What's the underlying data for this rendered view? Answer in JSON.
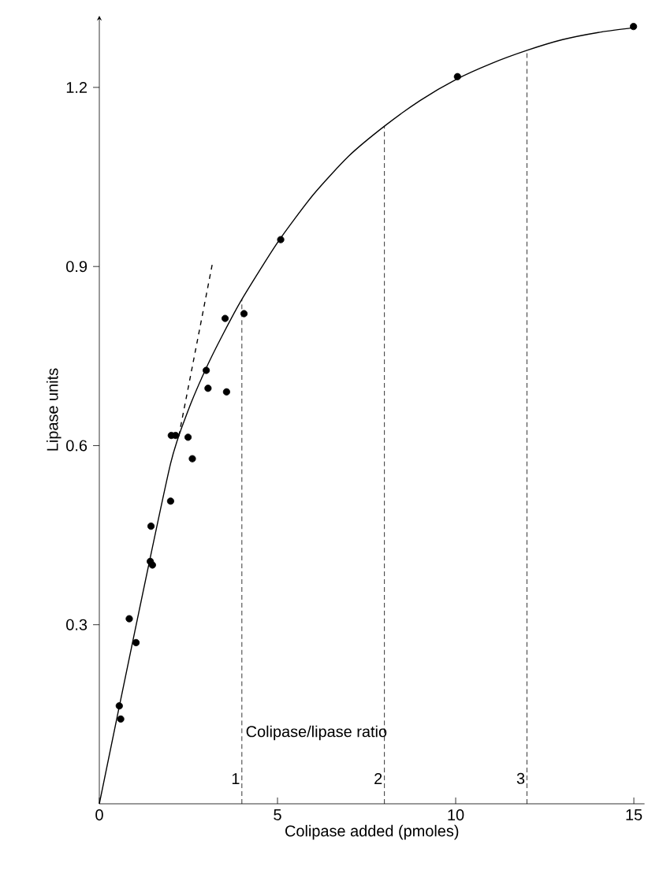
{
  "chart_data": {
    "type": "scatter",
    "xlabel": "Colipase added (pmoles)",
    "ylabel": "Lipase units",
    "xlim": [
      0,
      15.3
    ],
    "ylim": [
      0,
      1.32
    ],
    "xticks": [
      0,
      5,
      10,
      15
    ],
    "yticks": [
      0.3,
      0.6,
      0.9,
      1.2
    ],
    "grid": false,
    "marker": "circle",
    "series": [
      {
        "color": "#000000",
        "x": [
          0.56,
          0.6,
          0.84,
          1.03,
          1.45,
          1.43,
          1.49,
          2.0,
          2.02,
          2.14,
          2.49,
          2.61,
          3.0,
          3.05,
          3.57,
          3.53,
          4.06,
          5.09,
          10.05,
          14.99
        ],
        "values": [
          0.164,
          0.142,
          0.31,
          0.27,
          0.465,
          0.406,
          0.4,
          0.507,
          0.617,
          0.617,
          0.614,
          0.578,
          0.726,
          0.696,
          0.69,
          0.813,
          0.821,
          0.945,
          1.218,
          1.302
        ]
      },
      {
        "type": "line",
        "color": "#000000",
        "line_style": "solid",
        "marker": "none",
        "x": [
          0,
          1,
          2,
          2.5,
          3,
          3.5,
          4,
          5,
          6,
          7,
          8,
          9,
          10,
          11,
          12,
          13,
          14,
          15
        ],
        "values": [
          0,
          0.29,
          0.57,
          0.66,
          0.73,
          0.79,
          0.845,
          0.94,
          1.02,
          1.085,
          1.135,
          1.178,
          1.213,
          1.24,
          1.262,
          1.28,
          1.292,
          1.3
        ]
      },
      {
        "type": "line",
        "color": "#000000",
        "line_style": "dashed",
        "marker": "none",
        "x": [
          2.23,
          3.19
        ],
        "values": [
          0.616,
          0.91
        ]
      }
    ],
    "ref_lines": [
      {
        "axis": "x",
        "value": 4,
        "line_style": "dashed"
      },
      {
        "axis": "x",
        "value": 8,
        "line_style": "dashed"
      },
      {
        "axis": "x",
        "value": 12,
        "line_style": "dashed"
      }
    ],
    "annotations": [
      "Colipase/lipase ratio",
      {
        "text": "1",
        "x": 4,
        "y": 0.03
      },
      {
        "text": "2",
        "x": 8,
        "y": 0.03
      },
      {
        "text": "3",
        "x": 12,
        "y": 0.03
      }
    ]
  }
}
